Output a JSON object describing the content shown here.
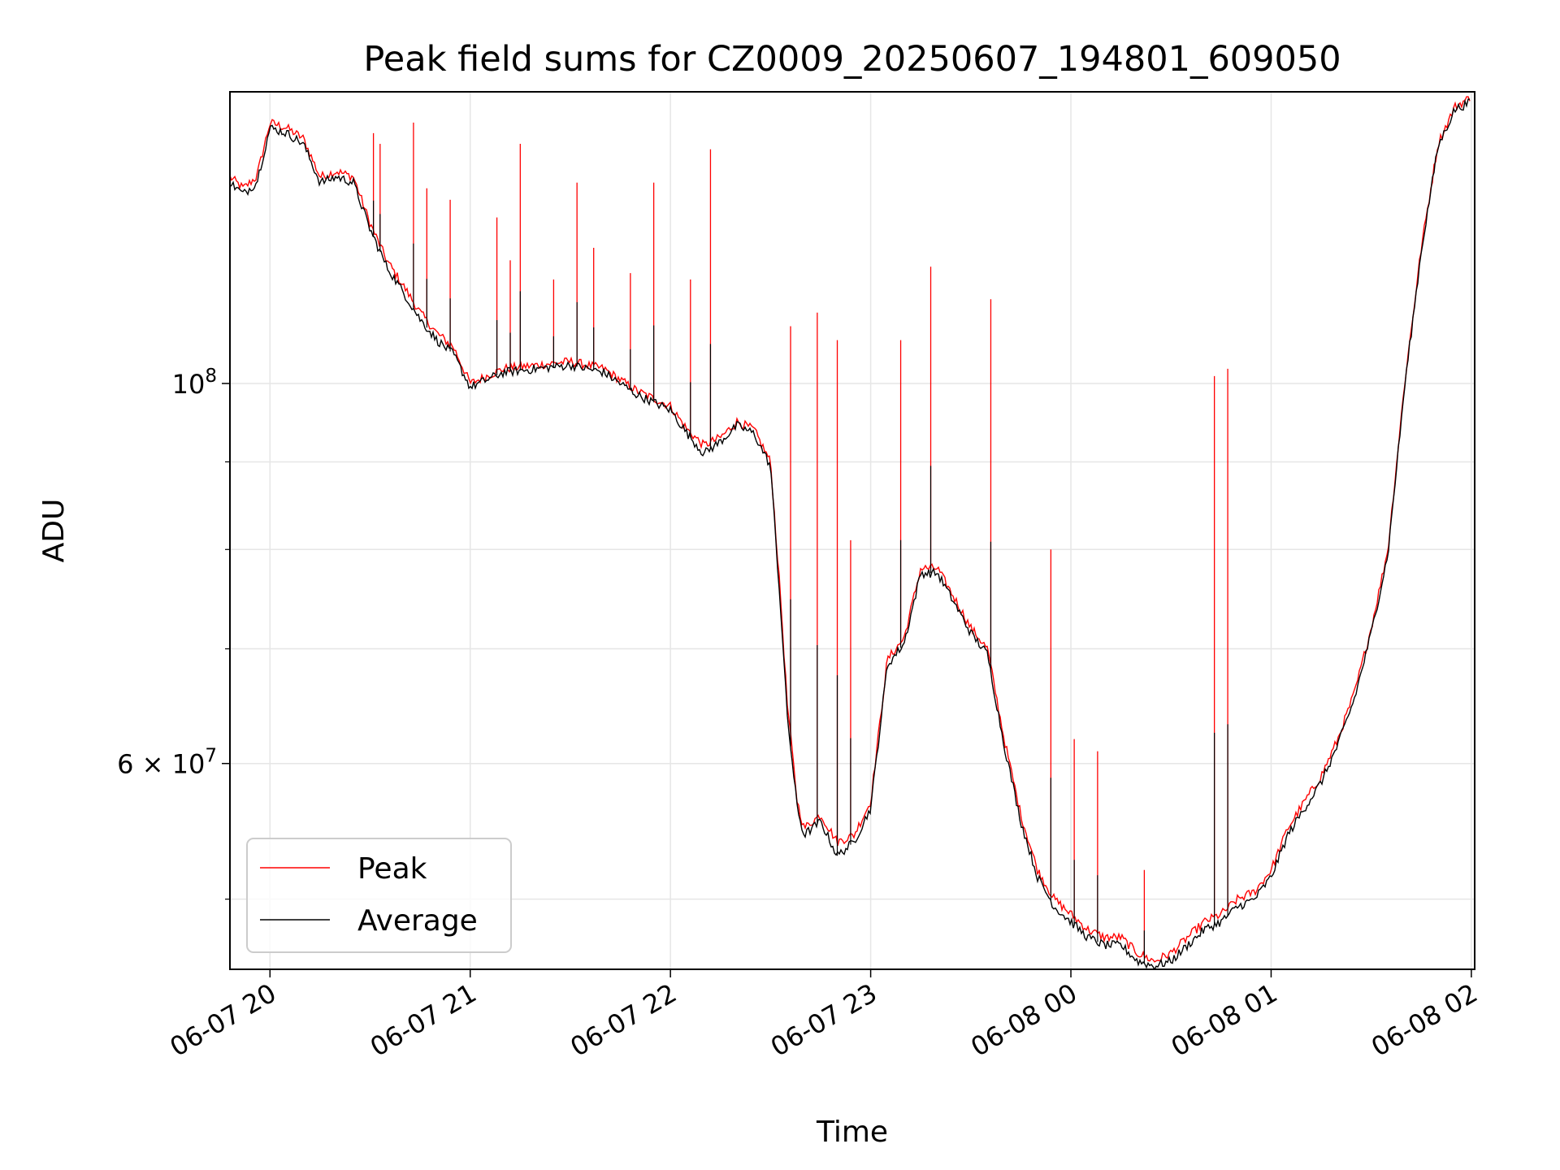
{
  "chart_data": {
    "type": "line",
    "title": "Peak field sums for CZ0009_20250607_194801_609050",
    "xlabel": "Time",
    "ylabel": "ADU",
    "x_ticks": [
      "06-07 20",
      "06-07 21",
      "06-07 22",
      "06-07 23",
      "06-08 00",
      "06-08 01",
      "06-08 02"
    ],
    "x_tick_values": [
      "2025-06-07 20:00",
      "2025-06-07 21:00",
      "2025-06-07 22:00",
      "2025-06-07 23:00",
      "2025-06-08 00:00",
      "2025-06-08 01:00",
      "2025-06-08 02:00"
    ],
    "xlim": [
      "2025-06-07 19:48",
      "2025-06-08 02:01"
    ],
    "y_scale": "log",
    "ylim": [
      45500000,
      148000000
    ],
    "y_ticks": [
      {
        "value": 100000000,
        "label_base": "10",
        "label_exp": "8"
      },
      {
        "value": 60000000,
        "label_base": "6 × 10",
        "label_exp": "7"
      }
    ],
    "y_minor_ticks": [
      50000000,
      70000000,
      80000000,
      90000000
    ],
    "grid": true,
    "legend_position": "lower-left",
    "x": [
      "2025-06-07 19:48",
      "2025-06-07 19:52",
      "2025-06-07 19:56",
      "2025-06-07 20:00",
      "2025-06-07 20:05",
      "2025-06-07 20:10",
      "2025-06-07 20:15",
      "2025-06-07 20:20",
      "2025-06-07 20:25",
      "2025-06-07 20:30",
      "2025-06-07 20:35",
      "2025-06-07 20:40",
      "2025-06-07 20:45",
      "2025-06-07 20:50",
      "2025-06-07 20:55",
      "2025-06-07 21:00",
      "2025-06-07 21:10",
      "2025-06-07 21:20",
      "2025-06-07 21:30",
      "2025-06-07 21:40",
      "2025-06-07 21:50",
      "2025-06-07 22:00",
      "2025-06-07 22:05",
      "2025-06-07 22:10",
      "2025-06-07 22:15",
      "2025-06-07 22:20",
      "2025-06-07 22:25",
      "2025-06-07 22:30",
      "2025-06-07 22:33",
      "2025-06-07 22:35",
      "2025-06-07 22:38",
      "2025-06-07 22:40",
      "2025-06-07 22:45",
      "2025-06-07 22:50",
      "2025-06-07 22:55",
      "2025-06-07 23:00",
      "2025-06-07 23:05",
      "2025-06-07 23:10",
      "2025-06-07 23:15",
      "2025-06-07 23:20",
      "2025-06-07 23:25",
      "2025-06-07 23:30",
      "2025-06-07 23:35",
      "2025-06-07 23:40",
      "2025-06-07 23:45",
      "2025-06-07 23:50",
      "2025-06-07 23:55",
      "2025-06-08 00:00",
      "2025-06-08 00:05",
      "2025-06-08 00:10",
      "2025-06-08 00:15",
      "2025-06-08 00:20",
      "2025-06-08 00:25",
      "2025-06-08 00:30",
      "2025-06-08 00:35",
      "2025-06-08 00:40",
      "2025-06-08 00:45",
      "2025-06-08 00:50",
      "2025-06-08 00:55",
      "2025-06-08 01:00",
      "2025-06-08 01:05",
      "2025-06-08 01:10",
      "2025-06-08 01:15",
      "2025-06-08 01:20",
      "2025-06-08 01:25",
      "2025-06-08 01:30",
      "2025-06-08 01:35",
      "2025-06-08 01:40",
      "2025-06-08 01:45",
      "2025-06-08 01:50",
      "2025-06-08 01:55",
      "2025-06-08 02:00"
    ],
    "series": [
      {
        "name": "Peak",
        "color": "#ff0000",
        "values": [
          132000000,
          130000000,
          132000000,
          142000000,
          141000000,
          139000000,
          132000000,
          133000000,
          132000000,
          124000000,
          118000000,
          114000000,
          110000000,
          107000000,
          105000000,
          100000000,
          102000000,
          102500000,
          103000000,
          102000000,
          99000000,
          97000000,
          94000000,
          92000000,
          93000000,
          95000000,
          94000000,
          90000000,
          75000000,
          65000000,
          57000000,
          55000000,
          56000000,
          54000000,
          54500000,
          57000000,
          69000000,
          71000000,
          78000000,
          78000000,
          75000000,
          72000000,
          70000000,
          62000000,
          56000000,
          52000000,
          50000000,
          49000000,
          48000000,
          47500000,
          47500000,
          46500000,
          46000000,
          46500000,
          47500000,
          48500000,
          49000000,
          50000000,
          50500000,
          52000000,
          55000000,
          57000000,
          59000000,
          62000000,
          66000000,
          72000000,
          80000000,
          100000000,
          120000000,
          138000000,
          145000000,
          147000000
        ]
      },
      {
        "name": "Average",
        "color": "#000000",
        "values": [
          131000000,
          129000000,
          131000000,
          141000000,
          140000000,
          138000000,
          131000000,
          132000000,
          131000000,
          123000000,
          117000000,
          113000000,
          109000000,
          106000000,
          104000000,
          99500000,
          101500000,
          102000000,
          102500000,
          101500000,
          98500000,
          96500000,
          93500000,
          91000000,
          92500000,
          94500000,
          93500000,
          89500000,
          74000000,
          64000000,
          56500000,
          54500000,
          55500000,
          53000000,
          54000000,
          56500000,
          68500000,
          70500000,
          77500000,
          77500000,
          74500000,
          71500000,
          69500000,
          61500000,
          55500000,
          51500000,
          49500000,
          48500000,
          47500000,
          47000000,
          47000000,
          46000000,
          45700000,
          46000000,
          47000000,
          48000000,
          48500000,
          49500000,
          50000000,
          51500000,
          54500000,
          56500000,
          58500000,
          61500000,
          65500000,
          71500000,
          79500000,
          99500000,
          119500000,
          137500000,
          144500000,
          146000000
        ]
      }
    ],
    "spikes": [
      {
        "x": "2025-06-07 20:31",
        "y": 140000000
      },
      {
        "x": "2025-06-07 20:33",
        "y": 138000000
      },
      {
        "x": "2025-06-07 20:43",
        "y": 142000000
      },
      {
        "x": "2025-06-07 20:47",
        "y": 130000000
      },
      {
        "x": "2025-06-07 20:54",
        "y": 128000000
      },
      {
        "x": "2025-06-07 21:08",
        "y": 125000000
      },
      {
        "x": "2025-06-07 21:12",
        "y": 118000000
      },
      {
        "x": "2025-06-07 21:15",
        "y": 138000000
      },
      {
        "x": "2025-06-07 21:25",
        "y": 115000000
      },
      {
        "x": "2025-06-07 21:32",
        "y": 131000000
      },
      {
        "x": "2025-06-07 21:37",
        "y": 120000000
      },
      {
        "x": "2025-06-07 21:48",
        "y": 116000000
      },
      {
        "x": "2025-06-07 21:55",
        "y": 131000000
      },
      {
        "x": "2025-06-07 22:06",
        "y": 115000000
      },
      {
        "x": "2025-06-07 22:12",
        "y": 137000000
      },
      {
        "x": "2025-06-07 22:36",
        "y": 108000000
      },
      {
        "x": "2025-06-07 22:44",
        "y": 110000000
      },
      {
        "x": "2025-06-07 22:50",
        "y": 106000000
      },
      {
        "x": "2025-06-07 22:54",
        "y": 81000000
      },
      {
        "x": "2025-06-07 23:09",
        "y": 106000000
      },
      {
        "x": "2025-06-07 23:18",
        "y": 117000000
      },
      {
        "x": "2025-06-07 23:36",
        "y": 112000000
      },
      {
        "x": "2025-06-07 23:54",
        "y": 80000000
      },
      {
        "x": "2025-06-08 00:01",
        "y": 62000000
      },
      {
        "x": "2025-06-08 00:08",
        "y": 61000000
      },
      {
        "x": "2025-06-08 00:22",
        "y": 52000000
      },
      {
        "x": "2025-06-08 00:43",
        "y": 101000000
      },
      {
        "x": "2025-06-08 00:47",
        "y": 102000000
      }
    ]
  }
}
